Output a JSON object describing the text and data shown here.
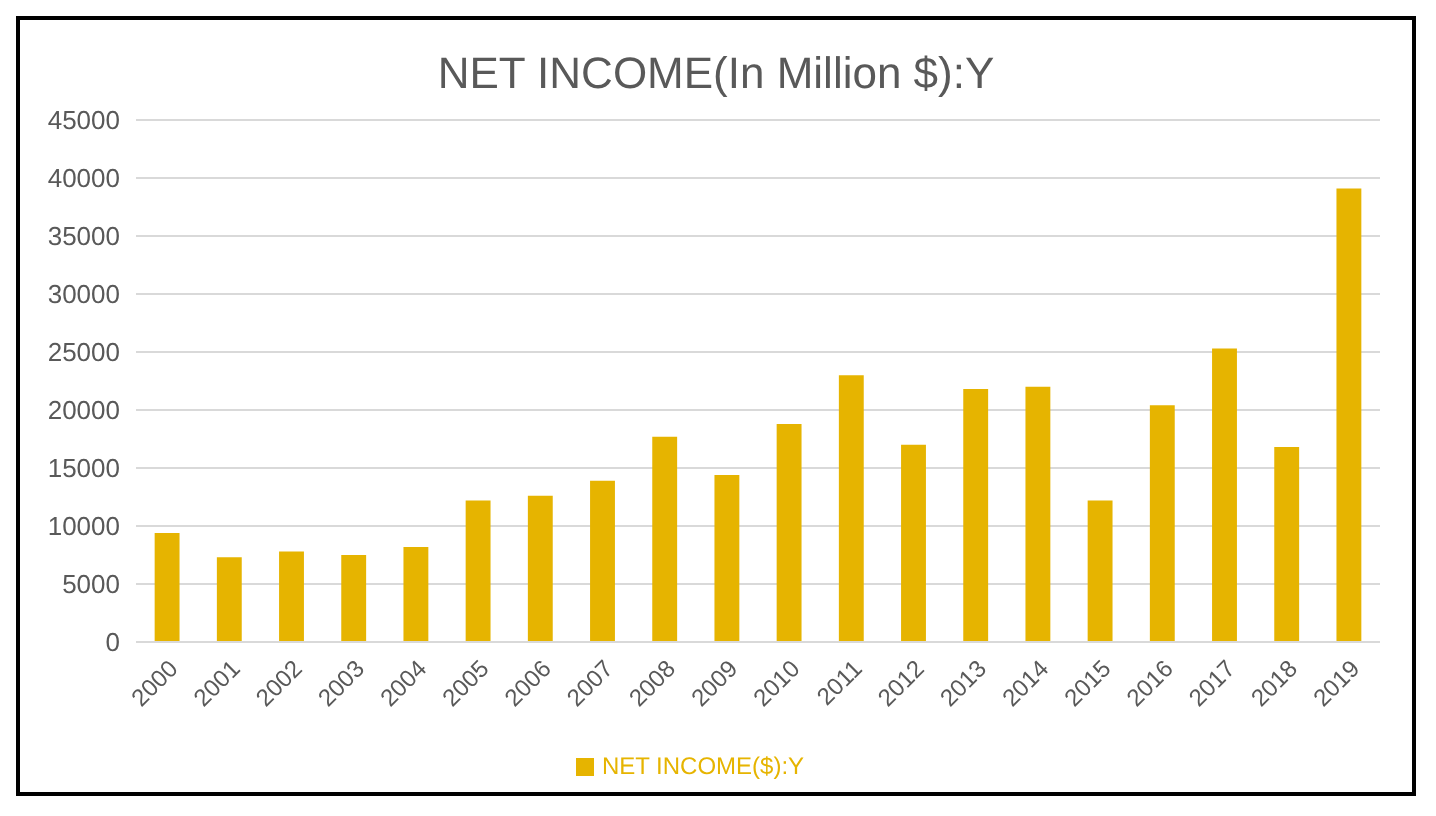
{
  "chart_data": {
    "type": "bar",
    "title": "NET INCOME(In Million $):Y",
    "categories": [
      "2000",
      "2001",
      "2002",
      "2003",
      "2004",
      "2005",
      "2006",
      "2007",
      "2008",
      "2009",
      "2010",
      "2011",
      "2012",
      "2013",
      "2014",
      "2015",
      "2016",
      "2017",
      "2018",
      "2019"
    ],
    "series": [
      {
        "name": "NET INCOME($):Y",
        "color": "#e6b400",
        "values": [
          9400,
          7300,
          7800,
          7500,
          8200,
          12200,
          12600,
          13900,
          17700,
          14400,
          18800,
          23000,
          17000,
          21800,
          22000,
          12200,
          20400,
          25300,
          16800,
          39100
        ]
      }
    ],
    "ylim": [
      0,
      45000
    ],
    "yticks": [
      0,
      5000,
      10000,
      15000,
      20000,
      25000,
      30000,
      35000,
      40000,
      45000
    ],
    "grid": "y",
    "legend": "bottom"
  }
}
